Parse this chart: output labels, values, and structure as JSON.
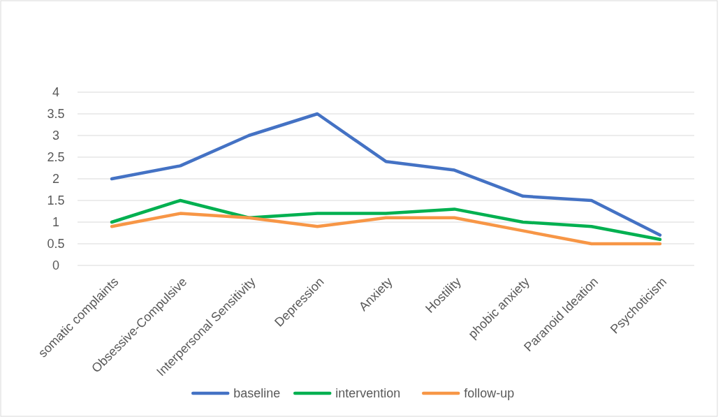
{
  "chart_data": {
    "type": "line",
    "categories": [
      "somatic complaints",
      "Obsessive-Compulsive",
      "Interpersonal Sensitivity",
      "Depression",
      "Anxiety",
      "Hostility",
      "phobic anxiety",
      "Paranoid Ideation",
      "Psychoticism"
    ],
    "series": [
      {
        "name": "baseline",
        "color": "#4472c4",
        "values": [
          2,
          2.3,
          3,
          3.5,
          2.4,
          2.2,
          1.6,
          1.5,
          0.7
        ]
      },
      {
        "name": "intervention",
        "color": "#00b050",
        "values": [
          1,
          1.5,
          1.1,
          1.2,
          1.2,
          1.3,
          1,
          0.9,
          0.6
        ]
      },
      {
        "name": "follow-up",
        "color": "#f79646",
        "values": [
          0.9,
          1.2,
          1.1,
          0.9,
          1.1,
          1.1,
          0.8,
          0.5,
          0.5
        ]
      }
    ],
    "ylim": [
      0,
      4
    ],
    "yticks": [
      0,
      0.5,
      1,
      1.5,
      2,
      2.5,
      3,
      3.5,
      4
    ],
    "grid": "y",
    "legend": "bottom",
    "line_style": "solid",
    "marker": "none"
  }
}
